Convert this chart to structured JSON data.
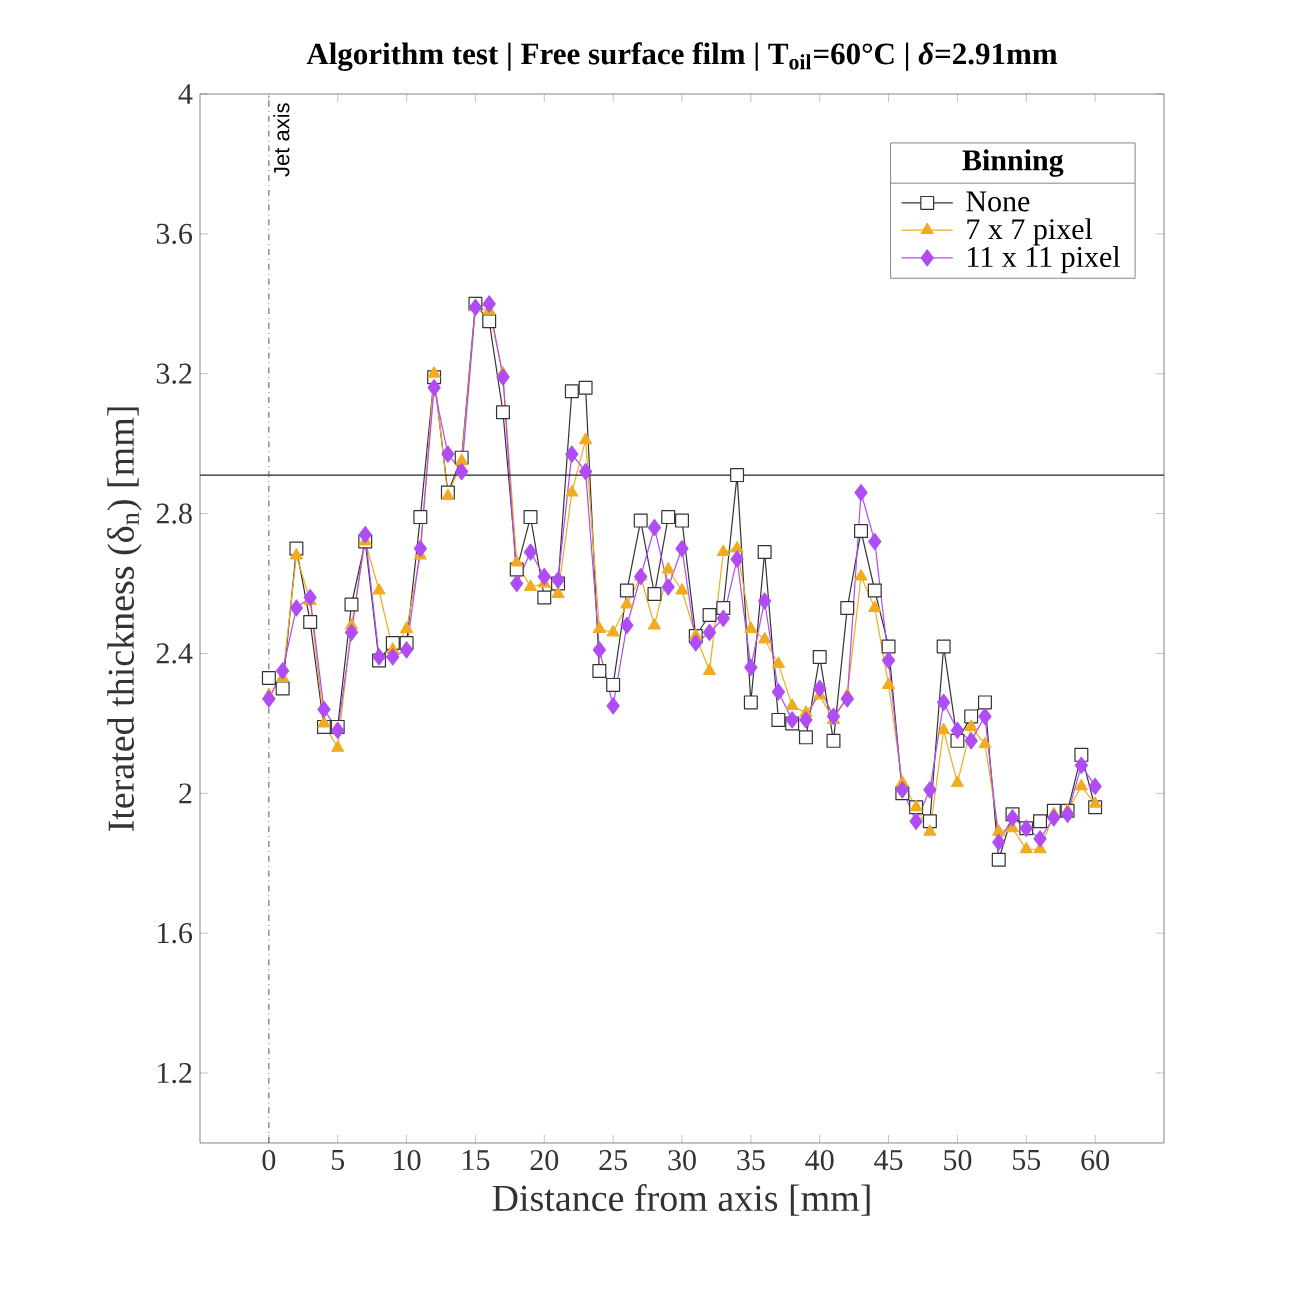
{
  "chart_data": {
    "type": "line",
    "title": "Algorithm test | Free surface film | T$_{oil}$=60°C | *δ*=2.91mm",
    "xlabel": "Distance from axis [mm]",
    "ylabel": "Iterated thickness (δ$_{n}$) [mm]",
    "legend_title": "Binning",
    "x": [
      0,
      1,
      2,
      3,
      4,
      5,
      6,
      7,
      8,
      9,
      10,
      11,
      12,
      13,
      14,
      15,
      16,
      17,
      18,
      19,
      20,
      21,
      22,
      23,
      24,
      25,
      26,
      27,
      28,
      29,
      30,
      31,
      32,
      33,
      34,
      35,
      36,
      37,
      38,
      39,
      40,
      41,
      42,
      43,
      44,
      45,
      46,
      47,
      48,
      49,
      50,
      51,
      52,
      53,
      54,
      55,
      56,
      57,
      58,
      59,
      60
    ],
    "series": [
      {
        "name": "None",
        "color": "#333333",
        "marker": "square",
        "values": [
          2.33,
          2.3,
          2.7,
          2.49,
          2.19,
          2.19,
          2.54,
          2.72,
          2.38,
          2.43,
          2.43,
          2.79,
          3.19,
          2.86,
          2.96,
          3.4,
          3.35,
          3.09,
          2.64,
          2.79,
          2.56,
          2.6,
          3.15,
          3.16,
          2.35,
          2.31,
          2.58,
          2.78,
          2.57,
          2.79,
          2.78,
          2.45,
          2.51,
          2.53,
          2.91,
          2.26,
          2.69,
          2.21,
          2.2,
          2.16,
          2.39,
          2.15,
          2.53,
          2.75,
          2.58,
          2.42,
          2.0,
          1.96,
          1.92,
          2.42,
          2.15,
          2.22,
          2.26,
          1.81,
          1.94,
          1.9,
          1.92,
          1.95,
          1.95,
          2.11,
          1.96
        ]
      },
      {
        "name": "7 x 7 pixel",
        "color": "#f0ac1e",
        "marker": "triangle",
        "values": [
          2.28,
          2.33,
          2.68,
          2.55,
          2.2,
          2.13,
          2.48,
          2.72,
          2.58,
          2.41,
          2.47,
          2.68,
          3.2,
          2.85,
          2.95,
          3.39,
          3.38,
          3.2,
          2.66,
          2.59,
          2.6,
          2.57,
          2.86,
          3.01,
          2.47,
          2.46,
          2.54,
          2.62,
          2.48,
          2.64,
          2.58,
          2.45,
          2.35,
          2.69,
          2.7,
          2.47,
          2.44,
          2.37,
          2.25,
          2.23,
          2.28,
          2.21,
          2.28,
          2.62,
          2.53,
          2.31,
          2.03,
          1.96,
          1.89,
          2.18,
          2.03,
          2.19,
          2.14,
          1.89,
          1.9,
          1.84,
          1.84,
          1.94,
          1.95,
          2.02,
          1.97
        ]
      },
      {
        "name": "11 x 11 pixel",
        "color": "#b04cf5",
        "marker": "diamond",
        "values": [
          2.27,
          2.35,
          2.53,
          2.56,
          2.24,
          2.18,
          2.46,
          2.74,
          2.39,
          2.39,
          2.41,
          2.7,
          3.16,
          2.97,
          2.92,
          3.39,
          3.4,
          3.19,
          2.6,
          2.69,
          2.62,
          2.61,
          2.97,
          2.92,
          2.41,
          2.25,
          2.48,
          2.62,
          2.76,
          2.59,
          2.7,
          2.43,
          2.46,
          2.5,
          2.67,
          2.36,
          2.55,
          2.29,
          2.21,
          2.21,
          2.3,
          2.22,
          2.27,
          2.86,
          2.72,
          2.38,
          2.01,
          1.92,
          2.01,
          2.26,
          2.18,
          2.15,
          2.22,
          1.86,
          1.93,
          1.9,
          1.87,
          1.93,
          1.94,
          2.08,
          2.02
        ]
      }
    ],
    "xlim": [
      -5,
      65
    ],
    "xticks": [
      0,
      5,
      10,
      15,
      20,
      25,
      30,
      35,
      40,
      45,
      50,
      55,
      60
    ],
    "ylim": [
      1,
      4
    ],
    "yticks": [
      1.2,
      1.6,
      2,
      2.4,
      2.8,
      3.2,
      3.6,
      4
    ],
    "ref_lines": [
      {
        "axis": "y",
        "value": 2.91,
        "color": "#222222",
        "line_style": "solid"
      },
      {
        "axis": "x",
        "value": 0,
        "label": "Jet axis",
        "color": "#555555",
        "line_style": "dashdot"
      }
    ],
    "legend": "top right",
    "grid": false
  }
}
